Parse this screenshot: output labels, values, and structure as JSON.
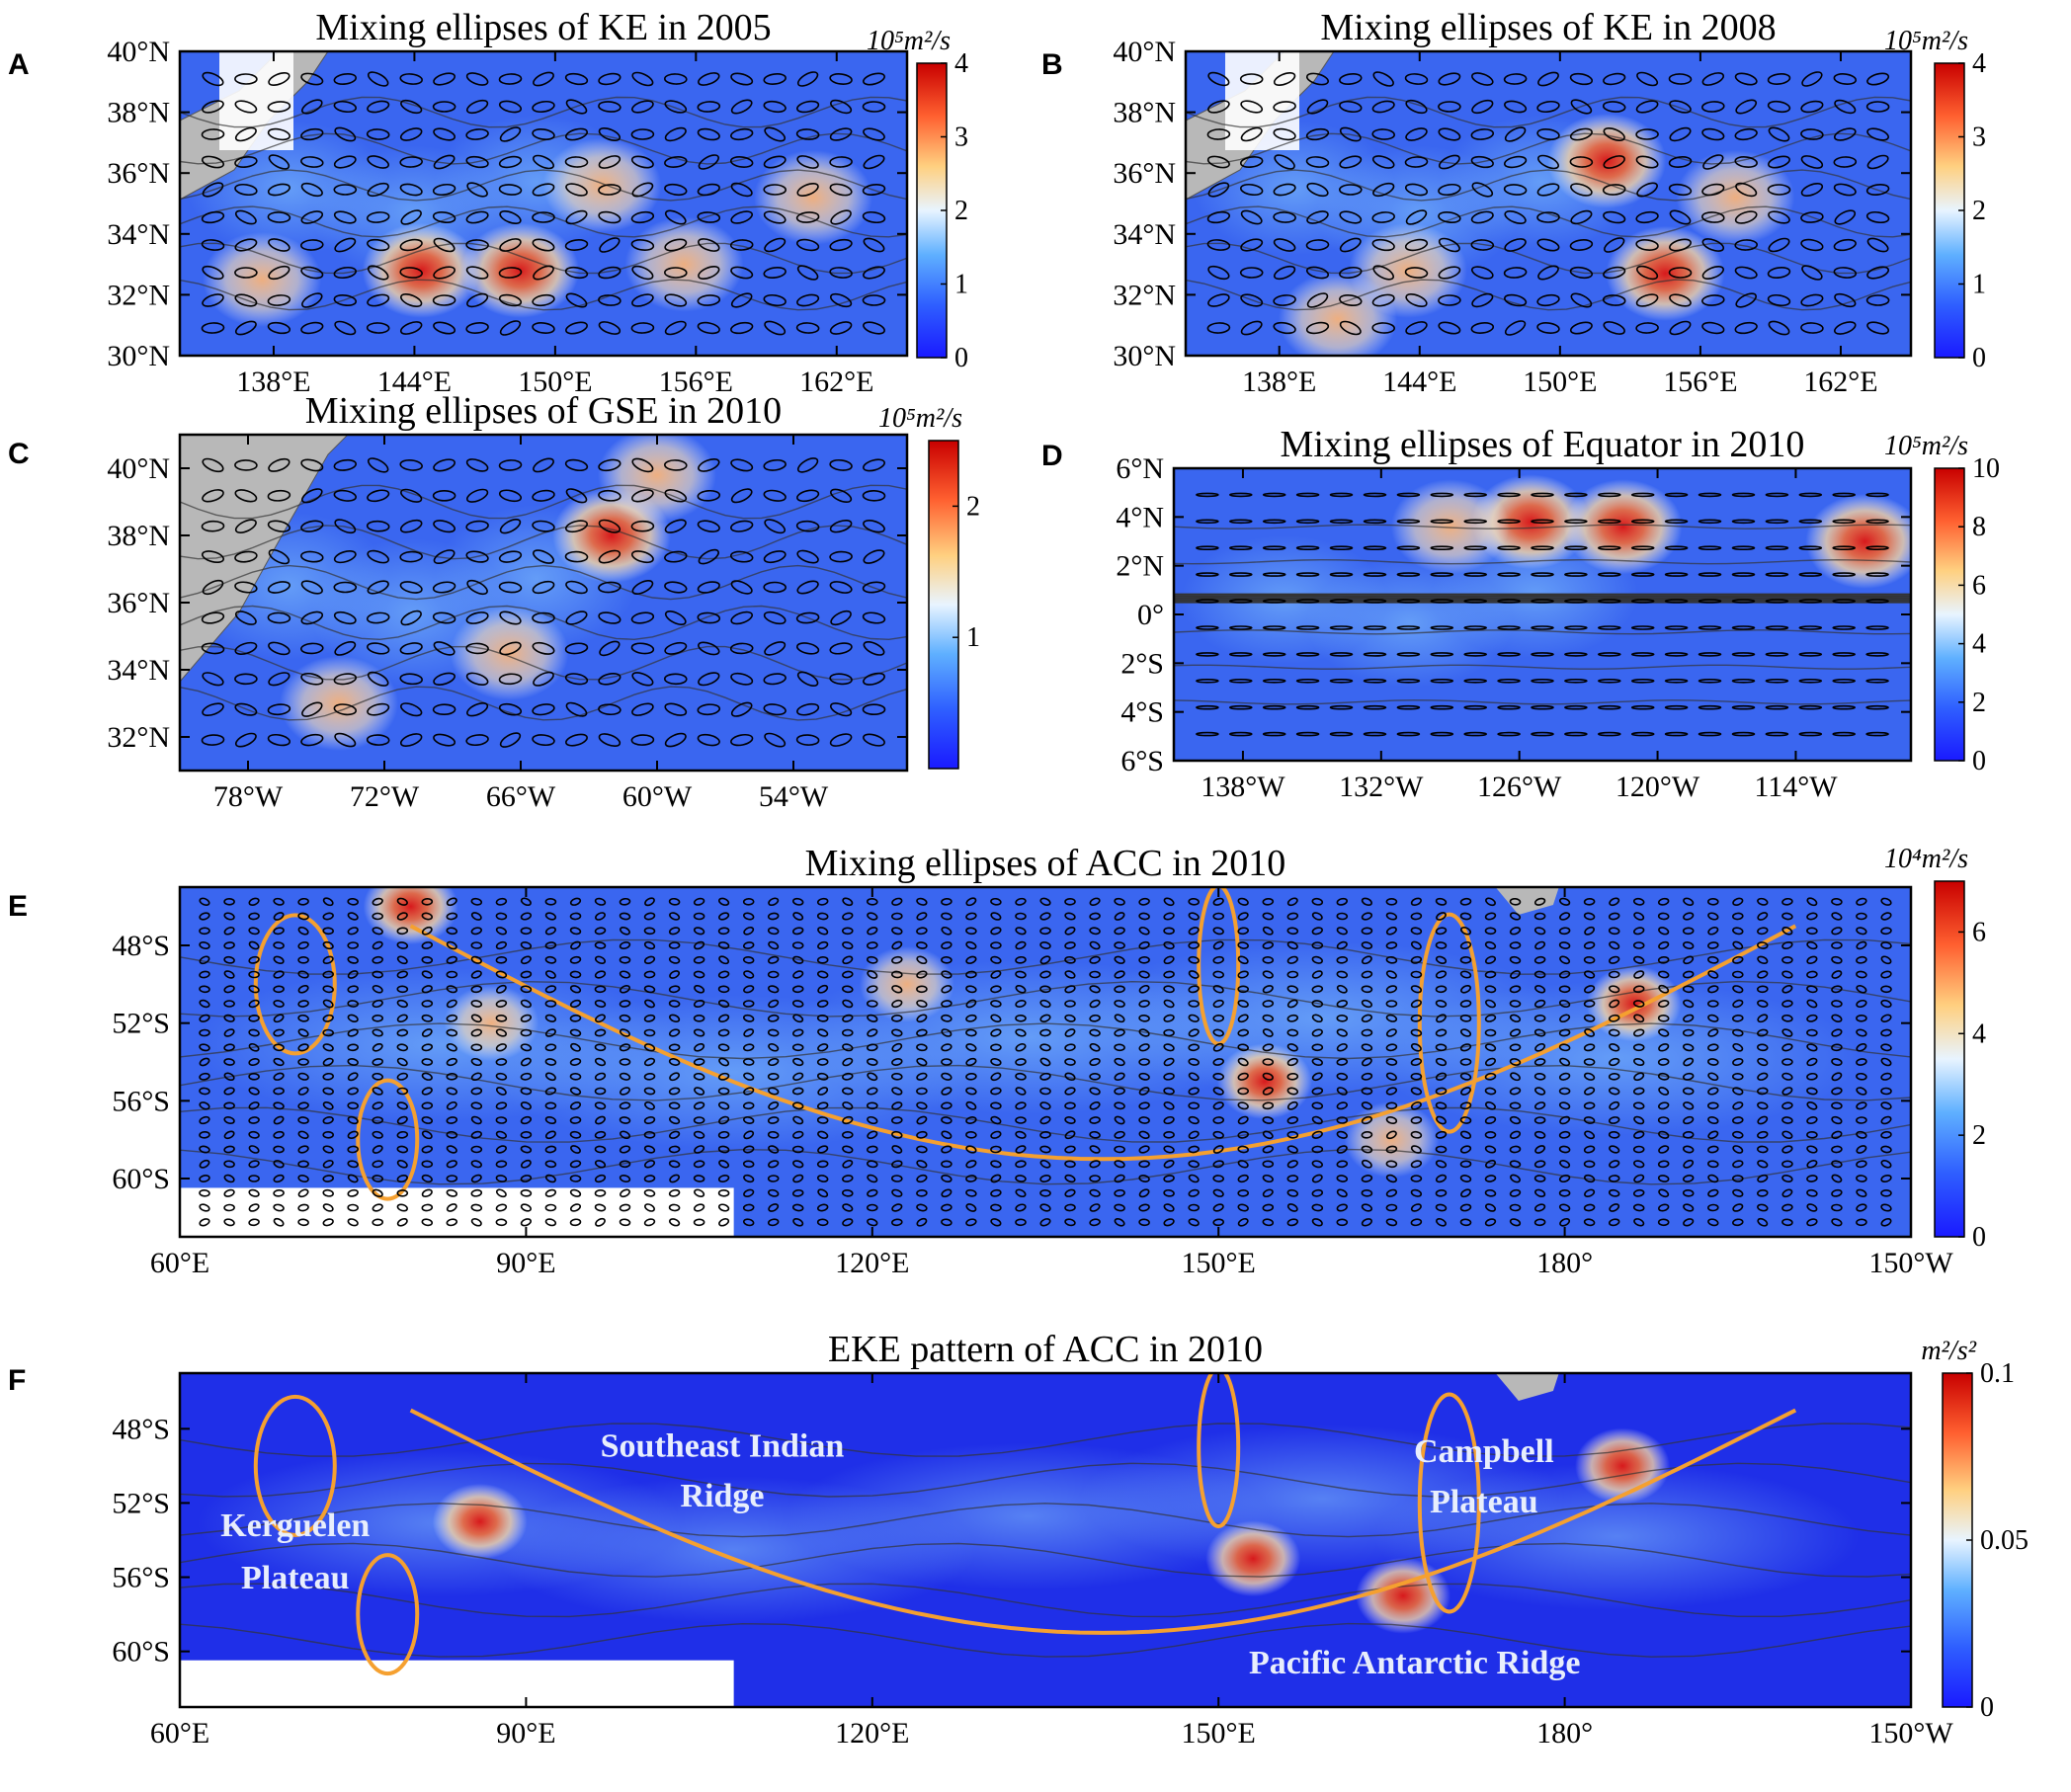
{
  "chart_data": [
    {
      "id": "A",
      "type": "heatmap",
      "title": "Mixing ellipses of KE in 2005",
      "panel_label": "A",
      "xlim": [
        134,
        165
      ],
      "ylim": [
        30,
        40
      ],
      "xticks": [
        {
          "v": 138,
          "t": "138°E"
        },
        {
          "v": 144,
          "t": "144°E"
        },
        {
          "v": 150,
          "t": "150°E"
        },
        {
          "v": 156,
          "t": "156°E"
        },
        {
          "v": 162,
          "t": "162°E"
        }
      ],
      "yticks": [
        {
          "v": 30,
          "t": "30°N"
        },
        {
          "v": 32,
          "t": "32°N"
        },
        {
          "v": 34,
          "t": "34°N"
        },
        {
          "v": 36,
          "t": "36°N"
        },
        {
          "v": 38,
          "t": "38°N"
        },
        {
          "v": 40,
          "t": "40°N"
        }
      ],
      "colorbar": {
        "unit": "10⁵m²/s",
        "min": 0,
        "max": 4,
        "ticks": [
          0,
          1,
          2,
          3,
          4
        ]
      },
      "hotspots": [
        {
          "lon": 144.3,
          "lat": 32.8,
          "value": 3.9
        },
        {
          "lon": 148.5,
          "lat": 32.8,
          "value": 3.8
        },
        {
          "lon": 152.0,
          "lat": 35.6,
          "value": 2.6
        },
        {
          "lon": 155.5,
          "lat": 33.0,
          "value": 2.6
        },
        {
          "lon": 137.5,
          "lat": 32.5,
          "value": 2.3
        },
        {
          "lon": 161.0,
          "lat": 35.2,
          "value": 2.0
        }
      ]
    },
    {
      "id": "B",
      "type": "heatmap",
      "title": "Mixing ellipses of KE in 2008",
      "panel_label": "B",
      "xlim": [
        134,
        165
      ],
      "ylim": [
        30,
        40
      ],
      "xticks": [
        {
          "v": 138,
          "t": "138°E"
        },
        {
          "v": 144,
          "t": "144°E"
        },
        {
          "v": 150,
          "t": "150°E"
        },
        {
          "v": 156,
          "t": "156°E"
        },
        {
          "v": 162,
          "t": "162°E"
        }
      ],
      "yticks": [
        {
          "v": 30,
          "t": "30°N"
        },
        {
          "v": 32,
          "t": "32°N"
        },
        {
          "v": 34,
          "t": "34°N"
        },
        {
          "v": 36,
          "t": "36°N"
        },
        {
          "v": 38,
          "t": "38°N"
        },
        {
          "v": 40,
          "t": "40°N"
        }
      ],
      "colorbar": {
        "unit": "10⁵m²/s",
        "min": 0,
        "max": 4,
        "ticks": [
          0,
          1,
          2,
          3,
          4
        ]
      },
      "hotspots": [
        {
          "lon": 152.0,
          "lat": 36.4,
          "value": 3.8
        },
        {
          "lon": 154.5,
          "lat": 32.7,
          "value": 3.6
        },
        {
          "lon": 143.5,
          "lat": 32.8,
          "value": 2.6
        },
        {
          "lon": 140.5,
          "lat": 31.2,
          "value": 2.6
        },
        {
          "lon": 157.5,
          "lat": 35.2,
          "value": 2.3
        }
      ]
    },
    {
      "id": "C",
      "type": "heatmap",
      "title": "Mixing ellipses of GSE in 2010",
      "panel_label": "C",
      "xlim": [
        -81,
        -49
      ],
      "ylim": [
        31,
        41
      ],
      "xticks": [
        {
          "v": -78,
          "t": "78°W"
        },
        {
          "v": -72,
          "t": "72°W"
        },
        {
          "v": -66,
          "t": "66°W"
        },
        {
          "v": -60,
          "t": "60°W"
        },
        {
          "v": -54,
          "t": "54°W"
        }
      ],
      "yticks": [
        {
          "v": 32,
          "t": "32°N"
        },
        {
          "v": 34,
          "t": "34°N"
        },
        {
          "v": 36,
          "t": "36°N"
        },
        {
          "v": 38,
          "t": "38°N"
        },
        {
          "v": 40,
          "t": "40°N"
        }
      ],
      "colorbar": {
        "unit": "10⁵m²/s",
        "min": 0,
        "max": 2.5,
        "ticks": [
          1,
          2
        ]
      },
      "hotspots": [
        {
          "lon": -62.0,
          "lat": 38.0,
          "value": 2.3
        },
        {
          "lon": -60.0,
          "lat": 39.8,
          "value": 1.6
        },
        {
          "lon": -74.0,
          "lat": 33.0,
          "value": 1.6
        },
        {
          "lon": -66.5,
          "lat": 34.5,
          "value": 1.4
        }
      ]
    },
    {
      "id": "D",
      "type": "heatmap",
      "title": "Mixing ellipses of Equator in 2010",
      "panel_label": "D",
      "xlim": [
        -141,
        -109
      ],
      "ylim": [
        -6,
        6
      ],
      "xticks": [
        {
          "v": -138,
          "t": "138°W"
        },
        {
          "v": -132,
          "t": "132°W"
        },
        {
          "v": -126,
          "t": "126°W"
        },
        {
          "v": -120,
          "t": "120°W"
        },
        {
          "v": -114,
          "t": "114°W"
        }
      ],
      "yticks": [
        {
          "v": 6,
          "t": "6°N"
        },
        {
          "v": 4,
          "t": "4°N"
        },
        {
          "v": 2,
          "t": "2°N"
        },
        {
          "v": 0,
          "t": "0°"
        },
        {
          "v": -2,
          "t": "2°S"
        },
        {
          "v": -4,
          "t": "4°S"
        },
        {
          "v": -6,
          "t": "6°S"
        }
      ],
      "colorbar": {
        "unit": "10⁵m²/s",
        "min": 0,
        "max": 10,
        "ticks": [
          0,
          2,
          4,
          6,
          8,
          10
        ]
      },
      "hotspots": [
        {
          "lon": -125.5,
          "lat": 3.8,
          "value": 10
        },
        {
          "lon": -121.5,
          "lat": 3.6,
          "value": 10
        },
        {
          "lon": -111.0,
          "lat": 3.0,
          "value": 9.5
        },
        {
          "lon": -129.0,
          "lat": 3.6,
          "value": 6.5
        }
      ]
    },
    {
      "id": "E",
      "type": "heatmap",
      "title": "Mixing ellipses of ACC in 2010",
      "panel_label": "E",
      "xlim": [
        60,
        210
      ],
      "ylim": [
        -63,
        -45
      ],
      "xticks": [
        {
          "v": 60,
          "t": "60°E"
        },
        {
          "v": 90,
          "t": "90°E"
        },
        {
          "v": 120,
          "t": "120°E"
        },
        {
          "v": 150,
          "t": "150°E"
        },
        {
          "v": 180,
          "t": "180°"
        },
        {
          "v": 210,
          "t": "150°W"
        }
      ],
      "yticks": [
        {
          "v": -48,
          "t": "48°S"
        },
        {
          "v": -52,
          "t": "52°S"
        },
        {
          "v": -56,
          "t": "56°S"
        },
        {
          "v": -60,
          "t": "60°S"
        }
      ],
      "colorbar": {
        "unit": "10⁴m²/s",
        "min": 0,
        "max": 7,
        "ticks": [
          0,
          2,
          4,
          6
        ]
      },
      "hotspots": [
        {
          "lon": 80,
          "lat": -46,
          "value": 7
        },
        {
          "lon": 186,
          "lat": -51,
          "value": 7
        },
        {
          "lon": 154,
          "lat": -55,
          "value": 6.5
        },
        {
          "lon": 165,
          "lat": -58,
          "value": 5
        },
        {
          "lon": 87,
          "lat": -52,
          "value": 4.5
        },
        {
          "lon": 123,
          "lat": -50,
          "value": 4.5
        }
      ]
    },
    {
      "id": "F",
      "type": "heatmap",
      "title": "EKE pattern of ACC in 2010",
      "panel_label": "F",
      "xlim": [
        60,
        210
      ],
      "ylim": [
        -63,
        -45
      ],
      "xticks": [
        {
          "v": 60,
          "t": "60°E"
        },
        {
          "v": 90,
          "t": "90°E"
        },
        {
          "v": 120,
          "t": "120°E"
        },
        {
          "v": 150,
          "t": "150°E"
        },
        {
          "v": 180,
          "t": "180°"
        },
        {
          "v": 210,
          "t": "150°W"
        }
      ],
      "yticks": [
        {
          "v": -48,
          "t": "48°S"
        },
        {
          "v": -52,
          "t": "52°S"
        },
        {
          "v": -56,
          "t": "56°S"
        },
        {
          "v": -60,
          "t": "60°S"
        }
      ],
      "colorbar": {
        "unit": "m²/s²",
        "min": 0,
        "max": 0.1,
        "ticks": [
          {
            "v": 0,
            "t": "0"
          },
          {
            "v": 0.05,
            "t": "0.05"
          },
          {
            "v": 0.1,
            "t": "0.1"
          }
        ]
      },
      "hotspots": [
        {
          "lon": 86,
          "lat": -53,
          "value": 0.1
        },
        {
          "lon": 153,
          "lat": -55,
          "value": 0.09
        },
        {
          "lon": 166,
          "lat": -57,
          "value": 0.085
        },
        {
          "lon": 185,
          "lat": -50,
          "value": 0.08
        }
      ],
      "annotations": [
        {
          "text": "Southeast Indian",
          "lon": 107,
          "lat": -49.5
        },
        {
          "text": "Ridge",
          "lon": 107,
          "lat": -52.2
        },
        {
          "text": "Campbell",
          "lon": 173,
          "lat": -49.8
        },
        {
          "text": "Plateau",
          "lon": 173,
          "lat": -52.5
        },
        {
          "text": "Kerguelen",
          "lon": 70,
          "lat": -53.8
        },
        {
          "text": "Plateau",
          "lon": 70,
          "lat": -56.6
        },
        {
          "text": "Pacific Antarctic Ridge",
          "lon": 167,
          "lat": -61.2
        }
      ]
    }
  ]
}
